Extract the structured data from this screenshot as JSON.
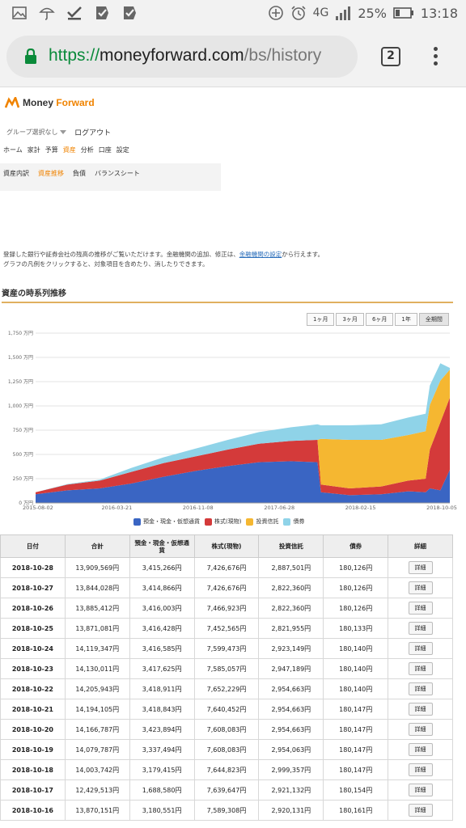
{
  "statusbar": {
    "time": "13:18",
    "battery": "25%",
    "network": "4G",
    "icons": [
      "gallery-icon",
      "umbrella-icon",
      "check-icon",
      "check-app-icon",
      "check-app2-icon",
      "add-circle-icon",
      "alarm-icon"
    ]
  },
  "browser": {
    "url_scheme": "https://",
    "url_host": "moneyforward.com",
    "url_path": "/bs/history",
    "tab_count": "2"
  },
  "header": {
    "logo_text_1": "Money ",
    "logo_text_2": "Forward",
    "group_select": "グループ選択なし",
    "logout": "ログアウト"
  },
  "mainnav": [
    "ホーム",
    "家計",
    "予算",
    "資産",
    "分析",
    "口座",
    "設定"
  ],
  "mainnav_active": 3,
  "subnav": [
    "資産内訳",
    "資産推移",
    "負債",
    "バランスシート"
  ],
  "subnav_active": 1,
  "description": {
    "line1_a": "登録した銀行や証券会社の残高の推移がご覧いただけます。金融機関の追加、修正は、",
    "line1_link": "金融機関の設定",
    "line1_b": "から行えます。",
    "line2": "グラフの凡例をクリックすると、対象項目を含めたり、消したりできます。"
  },
  "section_title": "資産の時系列推移",
  "ranges": [
    "1ヶ月",
    "3ヶ月",
    "6ヶ月",
    "1年",
    "全期間"
  ],
  "ranges_active": 4,
  "chart_data": {
    "type": "area",
    "stacked": true,
    "y_unit_ticks": [
      "0 万円",
      "250 万円",
      "500 万円",
      "750 万円",
      "1,000 万円",
      "1,250 万円",
      "1,500 万円",
      "1,750 万円"
    ],
    "ylim": [
      0,
      1750
    ],
    "x_tick_labels": [
      "2015-08-02",
      "2016-03-21",
      "2016-11-08",
      "2017-06-28",
      "2018-02-15",
      "2018-10-05"
    ],
    "x_range": [
      "2015-08-02",
      "2018-10-28"
    ],
    "x": [
      "2015-08-02",
      "2015-11-01",
      "2016-02-01",
      "2016-05-01",
      "2016-08-01",
      "2016-11-01",
      "2017-02-01",
      "2017-05-01",
      "2017-08-01",
      "2017-10-15",
      "2017-10-25",
      "2018-01-15",
      "2018-04-15",
      "2018-07-01",
      "2018-08-20",
      "2018-09-01",
      "2018-10-01",
      "2018-10-28"
    ],
    "series": [
      {
        "name": "預金・現金・仮想通貨",
        "color": "#3a65c3",
        "values": [
          90,
          130,
          150,
          200,
          270,
          330,
          380,
          420,
          430,
          420,
          110,
          80,
          90,
          120,
          110,
          150,
          130,
          342
        ]
      },
      {
        "name": "株式(現物)",
        "color": "#d43a3a",
        "values": [
          20,
          60,
          80,
          120,
          140,
          150,
          170,
          190,
          210,
          230,
          80,
          70,
          80,
          110,
          140,
          400,
          700,
          743
        ]
      },
      {
        "name": "投資信託",
        "color": "#f5b731",
        "values": [
          0,
          0,
          0,
          0,
          0,
          0,
          0,
          0,
          0,
          0,
          470,
          500,
          480,
          470,
          490,
          460,
          430,
          289
        ]
      },
      {
        "name": "債券",
        "color": "#8fd3e8",
        "values": [
          0,
          5,
          10,
          40,
          60,
          80,
          100,
          120,
          140,
          160,
          140,
          150,
          160,
          180,
          180,
          200,
          180,
          18
        ]
      }
    ]
  },
  "table": {
    "headers": [
      "日付",
      "合計",
      "預金・現金・仮想通貨",
      "株式(現物)",
      "投資信託",
      "債券",
      "詳細"
    ],
    "detail_label": "詳細",
    "rows": [
      [
        "2018-10-28",
        "13,909,569円",
        "3,415,266円",
        "7,426,676円",
        "2,887,501円",
        "180,126円"
      ],
      [
        "2018-10-27",
        "13,844,028円",
        "3,414,866円",
        "7,426,676円",
        "2,822,360円",
        "180,126円"
      ],
      [
        "2018-10-26",
        "13,885,412円",
        "3,416,003円",
        "7,466,923円",
        "2,822,360円",
        "180,126円"
      ],
      [
        "2018-10-25",
        "13,871,081円",
        "3,416,428円",
        "7,452,565円",
        "2,821,955円",
        "180,133円"
      ],
      [
        "2018-10-24",
        "14,119,347円",
        "3,416,585円",
        "7,599,473円",
        "2,923,149円",
        "180,140円"
      ],
      [
        "2018-10-23",
        "14,130,011円",
        "3,417,625円",
        "7,585,057円",
        "2,947,189円",
        "180,140円"
      ],
      [
        "2018-10-22",
        "14,205,943円",
        "3,418,911円",
        "7,652,229円",
        "2,954,663円",
        "180,140円"
      ],
      [
        "2018-10-21",
        "14,194,105円",
        "3,418,843円",
        "7,640,452円",
        "2,954,663円",
        "180,147円"
      ],
      [
        "2018-10-20",
        "14,166,787円",
        "3,423,894円",
        "7,608,083円",
        "2,954,663円",
        "180,147円"
      ],
      [
        "2018-10-19",
        "14,079,787円",
        "3,337,494円",
        "7,608,083円",
        "2,954,063円",
        "180,147円"
      ],
      [
        "2018-10-18",
        "14,003,742円",
        "3,179,415円",
        "7,644,823円",
        "2,999,357円",
        "180,147円"
      ],
      [
        "2018-10-17",
        "12,429,513円",
        "1,688,580円",
        "7,639,647円",
        "2,921,132円",
        "180,154円"
      ],
      [
        "2018-10-16",
        "13,870,151円",
        "3,180,551円",
        "7,589,308円",
        "2,920,131円",
        "180,161円"
      ]
    ]
  }
}
